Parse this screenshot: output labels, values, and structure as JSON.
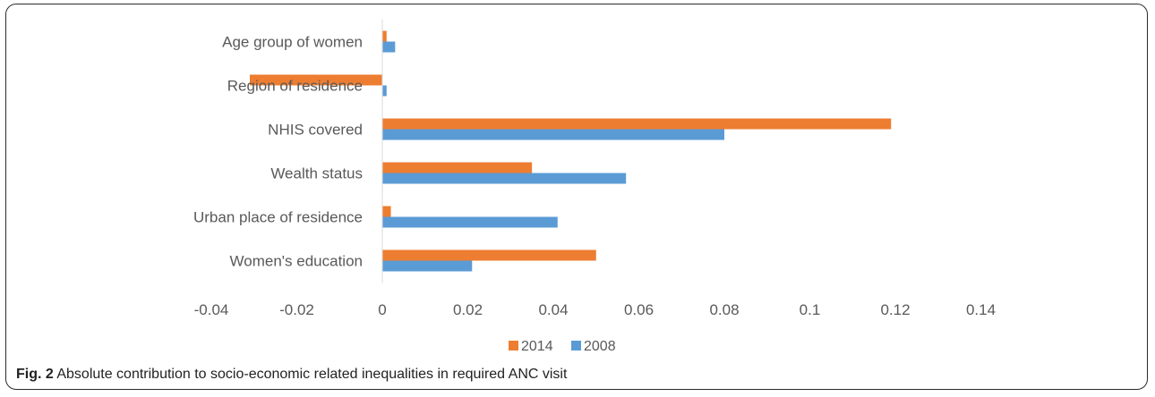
{
  "caption": {
    "label": "Fig. 2",
    "text": "Absolute contribution to socio-economic related inequalities in required ANC visit"
  },
  "chart_data": {
    "type": "bar",
    "orientation": "horizontal",
    "categories": [
      "Age group of women",
      "Region of residence",
      "NHIS covered",
      "Wealth status",
      "Urban place of residence",
      "Women's education"
    ],
    "series": [
      {
        "name": "2014",
        "color": "#ED7D31",
        "values": [
          0.001,
          -0.031,
          0.119,
          0.035,
          0.002,
          0.05
        ]
      },
      {
        "name": "2008",
        "color": "#5B9BD5",
        "values": [
          0.003,
          0.001,
          0.08,
          0.057,
          0.041,
          0.021
        ]
      }
    ],
    "x_ticks": [
      "-0.04",
      "-0.02",
      "0",
      "0.02",
      "0.04",
      "0.06",
      "0.08",
      "0.1",
      "0.12",
      "0.14"
    ],
    "xlim": [
      -0.04,
      0.14
    ],
    "grid": false,
    "legend_position": "bottom-center"
  }
}
